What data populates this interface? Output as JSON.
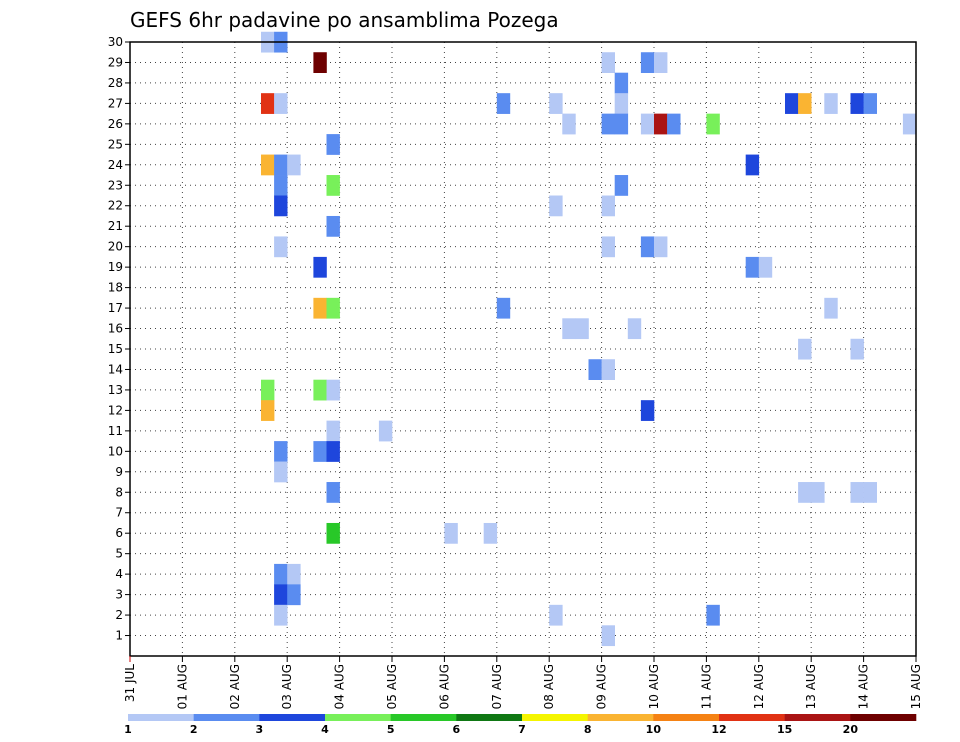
{
  "chart_data": {
    "type": "heatmap",
    "title": "GEFS 6hr padavine po ansamblima Pozega",
    "xlabel": "",
    "ylabel": "",
    "x_range_steps": [
      0,
      60
    ],
    "y_range": [
      0,
      30
    ],
    "x_tick_labels": [
      "31 JUL",
      "01 AUG",
      "02 AUG",
      "03 AUG",
      "04 AUG",
      "05 AUG",
      "06 AUG",
      "07 AUG",
      "08 AUG",
      "09 AUG",
      "10 AUG",
      "11 AUG",
      "12 AUG",
      "13 AUG",
      "14 AUG",
      "15 AUG"
    ],
    "y_tick_labels": [
      "1",
      "2",
      "3",
      "4",
      "5",
      "6",
      "7",
      "8",
      "9",
      "10",
      "11",
      "12",
      "13",
      "14",
      "15",
      "16",
      "17",
      "18",
      "19",
      "20",
      "21",
      "22",
      "23",
      "24",
      "25",
      "26",
      "27",
      "28",
      "29",
      "30"
    ],
    "colorbar": {
      "labels": [
        "1",
        "2",
        "3",
        "4",
        "5",
        "6",
        "7",
        "8",
        "10",
        "12",
        "15",
        "20"
      ],
      "colors": [
        "#b4c8f5",
        "#5a8cf0",
        "#1e46dc",
        "#78f05a",
        "#28c828",
        "#0f7814",
        "#f5f500",
        "#fab432",
        "#f58214",
        "#e13214",
        "#aa1414",
        "#6e0000"
      ]
    },
    "cells": [
      {
        "step": 10.5,
        "member": 30,
        "cls": 1
      },
      {
        "step": 11.5,
        "member": 30,
        "cls": 2
      },
      {
        "step": 14.5,
        "member": 29,
        "cls": 12
      },
      {
        "step": 36.5,
        "member": 29,
        "cls": 1
      },
      {
        "step": 39.5,
        "member": 29,
        "cls": 2
      },
      {
        "step": 40.5,
        "member": 29,
        "cls": 1
      },
      {
        "step": 37.5,
        "member": 28,
        "cls": 2
      },
      {
        "step": 10.5,
        "member": 27,
        "cls": 10
      },
      {
        "step": 11.5,
        "member": 27,
        "cls": 1
      },
      {
        "step": 28.5,
        "member": 27,
        "cls": 2
      },
      {
        "step": 32.5,
        "member": 27,
        "cls": 1
      },
      {
        "step": 37.5,
        "member": 27,
        "cls": 1
      },
      {
        "step": 50.5,
        "member": 27,
        "cls": 3
      },
      {
        "step": 51.5,
        "member": 27,
        "cls": 8
      },
      {
        "step": 53.5,
        "member": 27,
        "cls": 1
      },
      {
        "step": 55.5,
        "member": 27,
        "cls": 3
      },
      {
        "step": 56.5,
        "member": 27,
        "cls": 2
      },
      {
        "step": 33.5,
        "member": 26,
        "cls": 1
      },
      {
        "step": 36.5,
        "member": 26,
        "cls": 2
      },
      {
        "step": 37.5,
        "member": 26,
        "cls": 2
      },
      {
        "step": 39.5,
        "member": 26,
        "cls": 1
      },
      {
        "step": 40.5,
        "member": 26,
        "cls": 11
      },
      {
        "step": 41.5,
        "member": 26,
        "cls": 2
      },
      {
        "step": 44.5,
        "member": 26,
        "cls": 4
      },
      {
        "step": 59.5,
        "member": 26,
        "cls": 1
      },
      {
        "step": 15.5,
        "member": 25,
        "cls": 2
      },
      {
        "step": 10.5,
        "member": 24,
        "cls": 8
      },
      {
        "step": 11.5,
        "member": 24,
        "cls": 2
      },
      {
        "step": 12.5,
        "member": 24,
        "cls": 1
      },
      {
        "step": 47.5,
        "member": 24,
        "cls": 3
      },
      {
        "step": 11.5,
        "member": 23,
        "cls": 2
      },
      {
        "step": 15.5,
        "member": 23,
        "cls": 4
      },
      {
        "step": 37.5,
        "member": 23,
        "cls": 2
      },
      {
        "step": 11.5,
        "member": 22,
        "cls": 3
      },
      {
        "step": 32.5,
        "member": 22,
        "cls": 1
      },
      {
        "step": 36.5,
        "member": 22,
        "cls": 1
      },
      {
        "step": 15.5,
        "member": 21,
        "cls": 2
      },
      {
        "step": 11.5,
        "member": 20,
        "cls": 1
      },
      {
        "step": 36.5,
        "member": 20,
        "cls": 1
      },
      {
        "step": 39.5,
        "member": 20,
        "cls": 2
      },
      {
        "step": 40.5,
        "member": 20,
        "cls": 1
      },
      {
        "step": 14.5,
        "member": 19,
        "cls": 3
      },
      {
        "step": 47.5,
        "member": 19,
        "cls": 2
      },
      {
        "step": 48.5,
        "member": 19,
        "cls": 1
      },
      {
        "step": 14.5,
        "member": 17,
        "cls": 8
      },
      {
        "step": 15.5,
        "member": 17,
        "cls": 4
      },
      {
        "step": 28.5,
        "member": 17,
        "cls": 2
      },
      {
        "step": 53.5,
        "member": 17,
        "cls": 1
      },
      {
        "step": 33.5,
        "member": 16,
        "cls": 1
      },
      {
        "step": 34.5,
        "member": 16,
        "cls": 1
      },
      {
        "step": 38.5,
        "member": 16,
        "cls": 1
      },
      {
        "step": 51.5,
        "member": 15,
        "cls": 1
      },
      {
        "step": 55.5,
        "member": 15,
        "cls": 1
      },
      {
        "step": 35.5,
        "member": 14,
        "cls": 2
      },
      {
        "step": 36.5,
        "member": 14,
        "cls": 1
      },
      {
        "step": 10.5,
        "member": 13,
        "cls": 4
      },
      {
        "step": 14.5,
        "member": 13,
        "cls": 4
      },
      {
        "step": 15.5,
        "member": 13,
        "cls": 1
      },
      {
        "step": 10.5,
        "member": 12,
        "cls": 8
      },
      {
        "step": 39.5,
        "member": 12,
        "cls": 3
      },
      {
        "step": 15.5,
        "member": 11,
        "cls": 1
      },
      {
        "step": 19.5,
        "member": 11,
        "cls": 1
      },
      {
        "step": 11.5,
        "member": 10,
        "cls": 2
      },
      {
        "step": 14.5,
        "member": 10,
        "cls": 2
      },
      {
        "step": 15.5,
        "member": 10,
        "cls": 3
      },
      {
        "step": 11.5,
        "member": 9,
        "cls": 1
      },
      {
        "step": 15.5,
        "member": 8,
        "cls": 2
      },
      {
        "step": 51.5,
        "member": 8,
        "cls": 1
      },
      {
        "step": 52.5,
        "member": 8,
        "cls": 1
      },
      {
        "step": 55.5,
        "member": 8,
        "cls": 1
      },
      {
        "step": 56.5,
        "member": 8,
        "cls": 1
      },
      {
        "step": 15.5,
        "member": 6,
        "cls": 5
      },
      {
        "step": 24.5,
        "member": 6,
        "cls": 1
      },
      {
        "step": 27.5,
        "member": 6,
        "cls": 1
      },
      {
        "step": 11.5,
        "member": 4,
        "cls": 2
      },
      {
        "step": 12.5,
        "member": 4,
        "cls": 1
      },
      {
        "step": 11.5,
        "member": 3,
        "cls": 3
      },
      {
        "step": 12.5,
        "member": 3,
        "cls": 2
      },
      {
        "step": 11.5,
        "member": 2,
        "cls": 1
      },
      {
        "step": 32.5,
        "member": 2,
        "cls": 1
      },
      {
        "step": 44.5,
        "member": 2,
        "cls": 2
      },
      {
        "step": 36.5,
        "member": 1,
        "cls": 1
      }
    ]
  }
}
